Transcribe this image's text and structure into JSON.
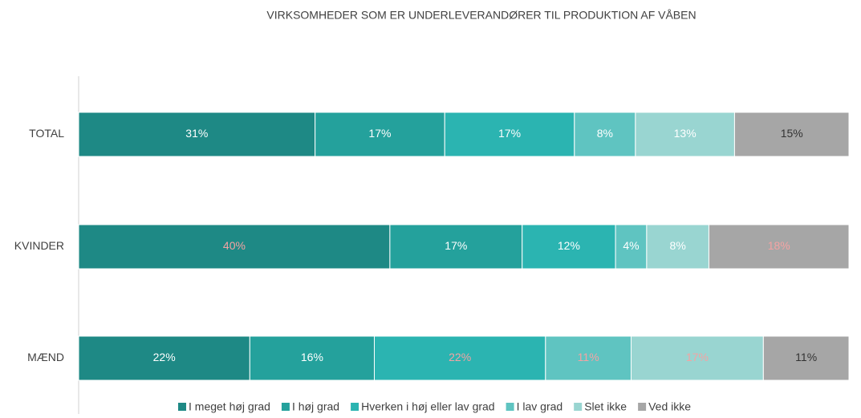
{
  "chart_data": {
    "type": "stacked-barh",
    "stacking": "percent",
    "title": "VIRKSOMHEDER SOM ER UNDERLEVERANDØRER TIL PRODUKTION AF VÅBEN",
    "categories": [
      "TOTAL",
      "KVINDER",
      "MÆND"
    ],
    "legend": "bottom",
    "series": [
      {
        "name": "I meget høj grad",
        "color": "#1e8985",
        "values": [
          31,
          40,
          22
        ],
        "value_labels": [
          "31%",
          "40%",
          "22%"
        ],
        "label_colors": [
          "#ffffff",
          "#f4a3a3",
          "#ffffff"
        ]
      },
      {
        "name": "I høj grad",
        "color": "#24a19c",
        "values": [
          17,
          17,
          16
        ],
        "value_labels": [
          "17%",
          "17%",
          "16%"
        ],
        "label_colors": [
          "#ffffff",
          "#ffffff",
          "#ffffff"
        ]
      },
      {
        "name": "Hverken i høj eller lav grad",
        "color": "#2bb4b1",
        "values": [
          17,
          12,
          22
        ],
        "value_labels": [
          "17%",
          "12%",
          "22%"
        ],
        "label_colors": [
          "#ffffff",
          "#ffffff",
          "#f4a3a3"
        ]
      },
      {
        "name": "I lav grad",
        "color": "#5fc4c1",
        "values": [
          8,
          4,
          11
        ],
        "value_labels": [
          "8%",
          "4%",
          "11%"
        ],
        "label_colors": [
          "#ffffff",
          "#ffffff",
          "#f4a3a3"
        ]
      },
      {
        "name": "Slet ikke",
        "color": "#99d5d1",
        "values": [
          13,
          8,
          17
        ],
        "value_labels": [
          "13%",
          "8%",
          "17%"
        ],
        "label_colors": [
          "#ffffff",
          "#ffffff",
          "#f4a3a3"
        ]
      },
      {
        "name": "Ved ikke",
        "color": "#a6a6a6",
        "values": [
          15,
          18,
          11
        ],
        "value_labels": [
          "15%",
          "18%",
          "11%"
        ],
        "label_colors": [
          "#333333",
          "#f4a3a3",
          "#333333"
        ]
      }
    ]
  }
}
